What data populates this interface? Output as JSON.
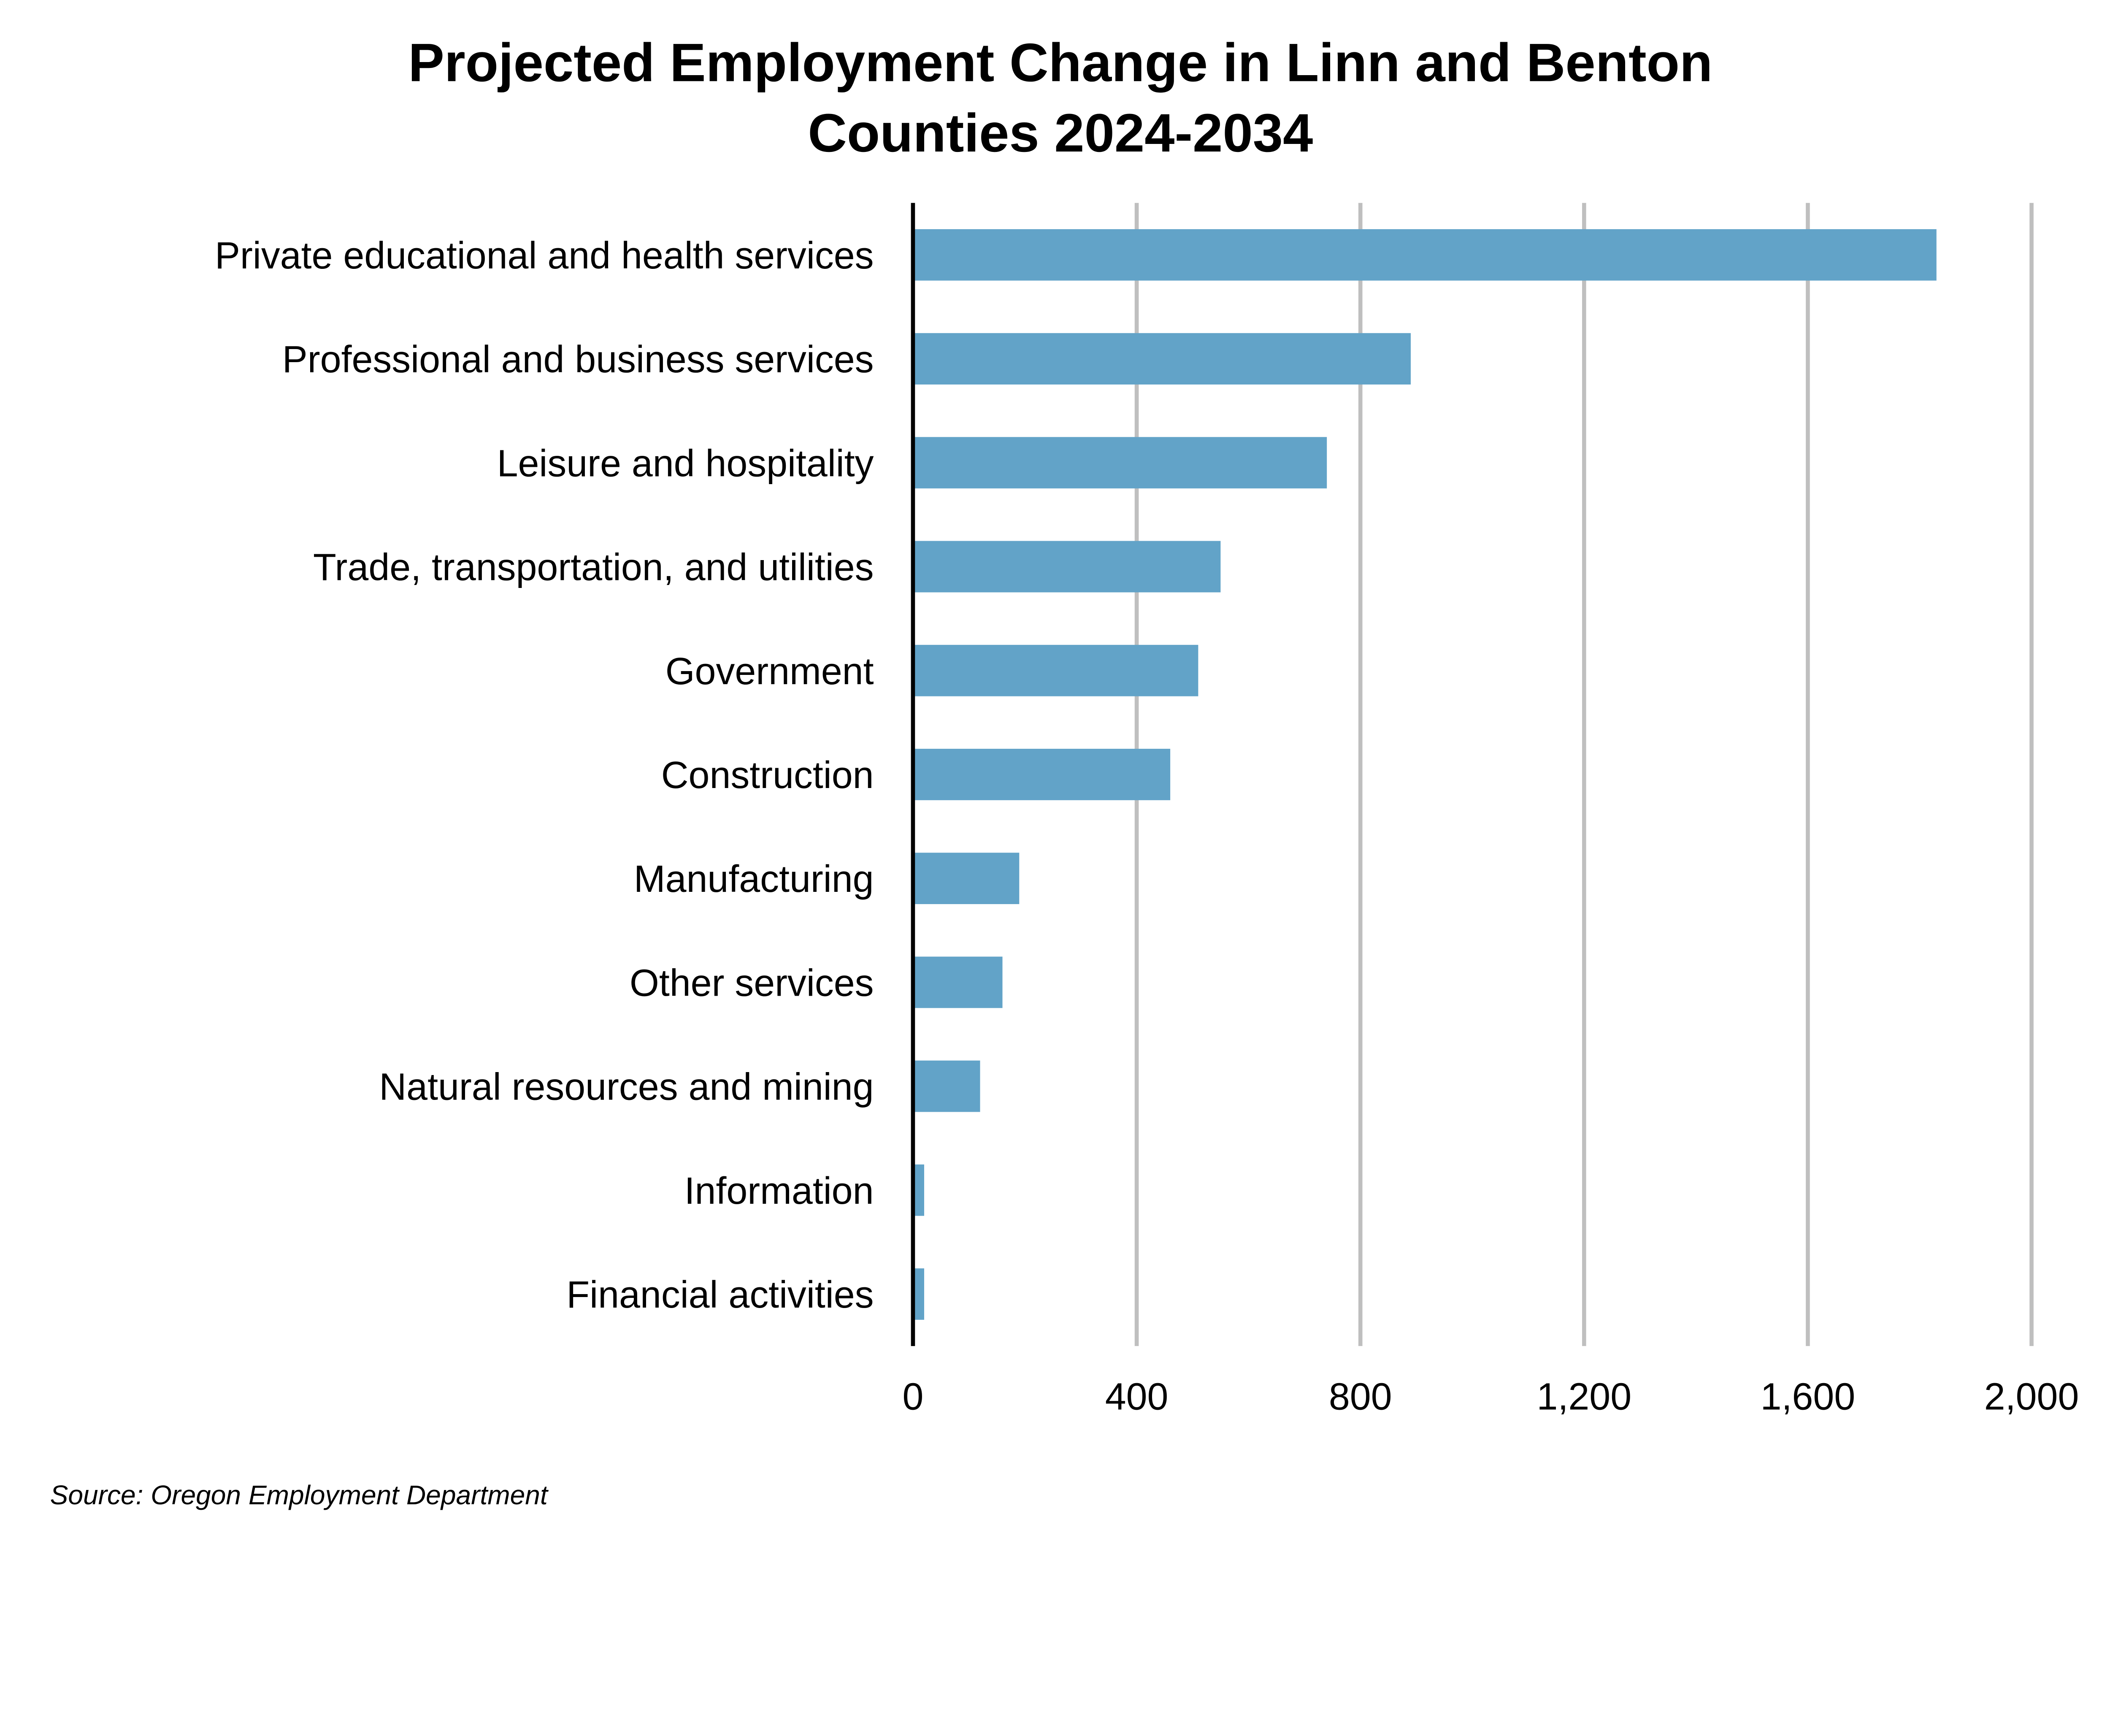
{
  "chart_data": {
    "type": "bar",
    "orientation": "horizontal",
    "title": "Projected Employment Change in Linn and Benton Counties 2024-2034",
    "title_lines": [
      "Projected Employment Change in Linn and Benton",
      "Counties 2024-2034"
    ],
    "categories": [
      "Private educational and health services",
      "Professional and business services",
      "Leisure and hospitality",
      "Trade, transportation, and utilities",
      "Government",
      "Construction",
      "Manufacturing",
      "Other services",
      "Natural resources and mining",
      "Information",
      "Financial activities"
    ],
    "values": [
      1830,
      890,
      740,
      550,
      510,
      460,
      190,
      160,
      120,
      20,
      20
    ],
    "xlim": [
      0,
      2000
    ],
    "xticks": [
      0,
      400,
      800,
      1200,
      1600,
      2000
    ],
    "xtick_labels": [
      "0",
      "400",
      "800",
      "1,200",
      "1,600",
      "2,000"
    ],
    "xlabel": "",
    "ylabel": "",
    "grid": "vertical",
    "legend": "none",
    "bar_color": "#62A3C8",
    "grid_color": "#BFBFBF",
    "source": "Source: Oregon Employment Department"
  }
}
